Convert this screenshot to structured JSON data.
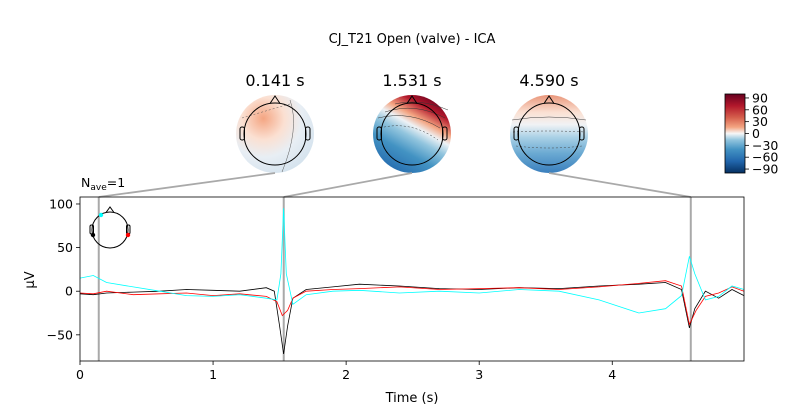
{
  "chart_data": {
    "type": "line",
    "title": "CJ_T21 Open (valve) - ICA",
    "nave_label": "N",
    "nave_sub": "ave",
    "nave_value": "=1",
    "xlabel": "Time (s)",
    "ylabel": "µV",
    "xlim": [
      0,
      4.99
    ],
    "ylim": [
      -80,
      108
    ],
    "xticks": [
      0,
      1,
      2,
      3,
      4
    ],
    "xtick_labels": [
      "0",
      "1",
      "2",
      "3",
      "4"
    ],
    "yticks": [
      -50,
      0,
      50,
      100
    ],
    "ytick_labels": [
      "−50",
      "0",
      "50",
      "100"
    ],
    "grid": false,
    "topomap_times": [
      0.141,
      1.531,
      4.59
    ],
    "topomap_labels": [
      "0.141 s",
      "1.531 s",
      "4.590 s"
    ],
    "colorbar": {
      "ticks": [
        90,
        60,
        30,
        0,
        -30,
        -60,
        -90
      ],
      "tick_labels": [
        "90",
        "60",
        "30",
        "0",
        "−30",
        "−60",
        "−90"
      ],
      "vmin": -100,
      "vmax": 100
    },
    "series": [
      {
        "color": "#000000",
        "x": [
          0,
          0.1,
          0.2,
          0.4,
          0.6,
          0.8,
          1.0,
          1.2,
          1.4,
          1.46,
          1.5,
          1.53,
          1.56,
          1.6,
          1.7,
          1.9,
          2.1,
          2.4,
          2.7,
          3.0,
          3.3,
          3.6,
          3.9,
          4.2,
          4.4,
          4.52,
          4.58,
          4.62,
          4.7,
          4.8,
          4.9,
          4.99
        ],
        "y": [
          -3,
          -4,
          -2,
          -1,
          0,
          2,
          1,
          0,
          4,
          0,
          -40,
          -72,
          -40,
          -8,
          2,
          5,
          8,
          6,
          3,
          2,
          4,
          3,
          6,
          8,
          10,
          2,
          -42,
          -20,
          0,
          -8,
          2,
          -5
        ]
      },
      {
        "color": "#ff0000",
        "x": [
          0,
          0.1,
          0.2,
          0.4,
          0.6,
          0.8,
          1.0,
          1.2,
          1.4,
          1.48,
          1.52,
          1.56,
          1.6,
          1.7,
          1.9,
          2.1,
          2.4,
          2.7,
          3.0,
          3.3,
          3.6,
          3.9,
          4.2,
          4.4,
          4.52,
          4.58,
          4.63,
          4.7,
          4.8,
          4.9,
          4.99
        ],
        "y": [
          -2,
          -3,
          0,
          -4,
          -3,
          -2,
          -5,
          -3,
          -6,
          -12,
          -28,
          -22,
          -8,
          0,
          2,
          3,
          5,
          2,
          3,
          4,
          2,
          5,
          9,
          12,
          6,
          -38,
          -22,
          -6,
          -2,
          5,
          0
        ]
      },
      {
        "color": "#00ffff",
        "x": [
          0,
          0.1,
          0.2,
          0.4,
          0.6,
          0.8,
          1.0,
          1.2,
          1.4,
          1.48,
          1.51,
          1.53,
          1.55,
          1.6,
          1.7,
          1.9,
          2.1,
          2.4,
          2.7,
          3.0,
          3.3,
          3.6,
          3.9,
          4.2,
          4.4,
          4.52,
          4.58,
          4.62,
          4.7,
          4.8,
          4.9,
          4.99
        ],
        "y": [
          15,
          18,
          10,
          5,
          0,
          -5,
          -6,
          -4,
          -8,
          -10,
          20,
          95,
          20,
          -15,
          -4,
          0,
          1,
          -2,
          0,
          -2,
          2,
          0,
          -10,
          -25,
          -20,
          -5,
          40,
          20,
          -10,
          -6,
          6,
          2
        ]
      }
    ]
  }
}
